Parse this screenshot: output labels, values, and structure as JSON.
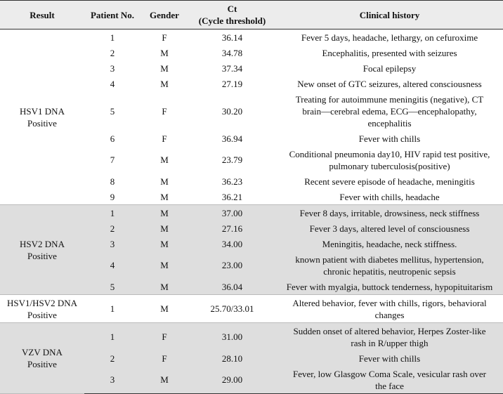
{
  "table": {
    "header": [
      "Result",
      "Patient No.",
      "Gender",
      "Ct\n(Cycle threshold)",
      "Clinical history"
    ],
    "groups": [
      {
        "result": "HSV1 DNA\nPositive",
        "rows": [
          [
            "1",
            "F",
            "36.14",
            "Fever 5 days, headache, lethargy, on cefuroxime"
          ],
          [
            "2",
            "M",
            "34.78",
            "Encephalitis, presented with seizures"
          ],
          [
            "3",
            "M",
            "37.34",
            "Focal epilepsy"
          ],
          [
            "4",
            "M",
            "27.19",
            "New onset of GTC seizures, altered consciousness"
          ],
          [
            "5",
            "F",
            "30.20",
            "Treating for autoimmune meningitis (negative), CT\nbrain—cerebral edema, ECG—encephalopathy,\nencephalitis"
          ],
          [
            "6",
            "F",
            "36.94",
            "Fever with chills"
          ],
          [
            "7",
            "M",
            "23.79",
            "Conditional pneumonia day10, HIV rapid test positive,\npulmonary tuberculosis(positive)"
          ],
          [
            "8",
            "M",
            "36.23",
            "Recent severe episode of headache, meningitis"
          ],
          [
            "9",
            "M",
            "36.21",
            "Fever with chills, headache"
          ]
        ]
      },
      {
        "result": "HSV2 DNA\nPositive",
        "rows": [
          [
            "1",
            "M",
            "37.00",
            "Fever 8 days, irritable, drowsiness, neck stiffness"
          ],
          [
            "2",
            "M",
            "27.16",
            "Fever 3 days, altered level of consciousness"
          ],
          [
            "3",
            "M",
            "34.00",
            "Meningitis, headache, neck stiffness."
          ],
          [
            "4",
            "M",
            "23.00",
            "known patient with diabetes mellitus, hypertension,\nchronic hepatitis, neutropenic sepsis"
          ],
          [
            "5",
            "M",
            "36.04",
            "Fever with myalgia, buttock tenderness, hypopituitarism"
          ]
        ]
      },
      {
        "result": "HSV1/HSV2 DNA\nPositive",
        "rows": [
          [
            "1",
            "M",
            "25.70/33.01",
            "Altered behavior, fever with chills, rigors, behavioral\nchanges"
          ]
        ]
      },
      {
        "result": "VZV DNA\nPositive",
        "rows": [
          [
            "1",
            "F",
            "31.00",
            "Sudden onset of altered behavior, Herpes Zoster-like\nrash in R/upper thigh"
          ],
          [
            "2",
            "F",
            "28.10",
            "Fever with chills"
          ],
          [
            "3",
            "M",
            "29.00",
            "Fever, low Glasgow Coma Scale, vesicular rash over\nthe face"
          ]
        ]
      }
    ]
  }
}
